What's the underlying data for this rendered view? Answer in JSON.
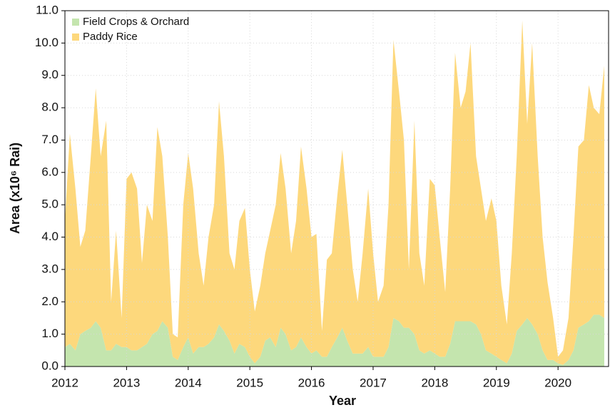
{
  "chart_data": {
    "type": "stacked_area",
    "xlabel": "Year",
    "ylabel": "Area (x10⁶ Rai)",
    "x": [
      2012,
      2012.08,
      2012.17,
      2012.25,
      2012.33,
      2012.42,
      2012.5,
      2012.58,
      2012.67,
      2012.75,
      2012.83,
      2012.92,
      2013,
      2013.08,
      2013.17,
      2013.25,
      2013.33,
      2013.42,
      2013.5,
      2013.58,
      2013.67,
      2013.75,
      2013.83,
      2013.92,
      2014,
      2014.08,
      2014.17,
      2014.25,
      2014.33,
      2014.42,
      2014.5,
      2014.58,
      2014.67,
      2014.75,
      2014.83,
      2014.92,
      2015,
      2015.08,
      2015.17,
      2015.25,
      2015.33,
      2015.42,
      2015.5,
      2015.58,
      2015.67,
      2015.75,
      2015.83,
      2015.92,
      2016,
      2016.08,
      2016.17,
      2016.25,
      2016.33,
      2016.42,
      2016.5,
      2016.58,
      2016.67,
      2016.75,
      2016.83,
      2016.92,
      2017,
      2017.08,
      2017.17,
      2017.25,
      2017.33,
      2017.42,
      2017.5,
      2017.58,
      2017.67,
      2017.75,
      2017.83,
      2017.92,
      2018,
      2018.08,
      2018.17,
      2018.25,
      2018.33,
      2018.42,
      2018.5,
      2018.58,
      2018.67,
      2018.75,
      2018.83,
      2018.92,
      2019,
      2019.08,
      2019.17,
      2019.25,
      2019.33,
      2019.42,
      2019.5,
      2019.58,
      2019.67,
      2019.75,
      2019.83,
      2019.92,
      2020,
      2020.08,
      2020.17,
      2020.25,
      2020.33,
      2020.42,
      2020.5,
      2020.58,
      2020.67,
      2020.75
    ],
    "series": [
      {
        "name": "Field Crops & Orchard",
        "color": "#c4e5ae",
        "values": [
          0.6,
          0.7,
          0.5,
          1.0,
          1.1,
          1.2,
          1.4,
          1.2,
          0.5,
          0.5,
          0.7,
          0.6,
          0.6,
          0.5,
          0.5,
          0.6,
          0.7,
          1.0,
          1.1,
          1.4,
          1.2,
          0.3,
          0.2,
          0.6,
          0.9,
          0.4,
          0.6,
          0.6,
          0.7,
          0.9,
          1.3,
          1.1,
          0.8,
          0.4,
          0.7,
          0.6,
          0.3,
          0.1,
          0.3,
          0.8,
          0.9,
          0.6,
          1.2,
          1.0,
          0.5,
          0.6,
          0.9,
          0.6,
          0.4,
          0.5,
          0.3,
          0.3,
          0.6,
          0.9,
          1.2,
          0.8,
          0.4,
          0.4,
          0.4,
          0.6,
          0.3,
          0.3,
          0.3,
          0.6,
          1.5,
          1.4,
          1.2,
          1.2,
          1.0,
          0.5,
          0.4,
          0.5,
          0.4,
          0.3,
          0.3,
          0.7,
          1.4,
          1.4,
          1.4,
          1.4,
          1.3,
          1.0,
          0.5,
          0.4,
          0.3,
          0.2,
          0.1,
          0.4,
          1.1,
          1.3,
          1.5,
          1.3,
          1.0,
          0.5,
          0.2,
          0.2,
          0.1,
          0.05,
          0.2,
          0.5,
          1.2,
          1.3,
          1.4,
          1.6,
          1.6,
          1.5
        ]
      },
      {
        "name": "Paddy Rice",
        "color": "#fdd87c",
        "values": [
          3.9,
          6.5,
          5.0,
          2.7,
          3.1,
          5.3,
          7.2,
          5.3,
          7.1,
          1.5,
          3.5,
          0.9,
          5.2,
          5.5,
          5.0,
          2.6,
          4.3,
          3.5,
          6.3,
          5.1,
          2.8,
          0.7,
          0.7,
          4.4,
          5.7,
          5.1,
          2.9,
          1.9,
          3.3,
          4.1,
          6.9,
          5.4,
          2.7,
          2.6,
          3.8,
          4.3,
          2.7,
          1.6,
          2.2,
          2.7,
          3.3,
          4.4,
          5.4,
          4.5,
          3.0,
          3.9,
          5.9,
          4.9,
          3.6,
          3.6,
          0.8,
          3.0,
          2.9,
          4.4,
          5.5,
          4.2,
          2.6,
          1.6,
          3.1,
          4.9,
          3.2,
          1.7,
          2.2,
          4.4,
          8.6,
          7.1,
          5.8,
          1.8,
          6.6,
          3.0,
          2.1,
          5.3,
          5.2,
          3.7,
          2.0,
          4.8,
          8.3,
          6.6,
          7.1,
          8.6,
          5.2,
          4.5,
          4.0,
          4.8,
          4.2,
          2.3,
          1.2,
          3.1,
          5.4,
          9.4,
          6.0,
          8.7,
          5.5,
          3.5,
          2.4,
          1.3,
          0.2,
          0.45,
          1.3,
          3.5,
          5.6,
          5.7,
          7.3,
          6.4,
          6.2,
          7.8
        ]
      }
    ],
    "xlim": [
      2012,
      2020.82
    ],
    "xticks": [
      2012,
      2013,
      2014,
      2015,
      2016,
      2017,
      2018,
      2019,
      2020
    ],
    "ylim": [
      0,
      11
    ],
    "yticks": [
      {
        "value": 0,
        "label": "0.0"
      },
      {
        "value": 1,
        "label": "1.0"
      },
      {
        "value": 2,
        "label": "2.0"
      },
      {
        "value": 3,
        "label": "3.0"
      },
      {
        "value": 4,
        "label": "4.0"
      },
      {
        "value": 5,
        "label": "5.0"
      },
      {
        "value": 6,
        "label": "6.0"
      },
      {
        "value": 7,
        "label": "7.0"
      },
      {
        "value": 8,
        "label": "8.0"
      },
      {
        "value": 9,
        "label": "9.0"
      },
      {
        "value": 10,
        "label": "10.0"
      },
      {
        "value": 11,
        "label": "11.0"
      }
    ],
    "grid": true,
    "legend": "upper left"
  }
}
